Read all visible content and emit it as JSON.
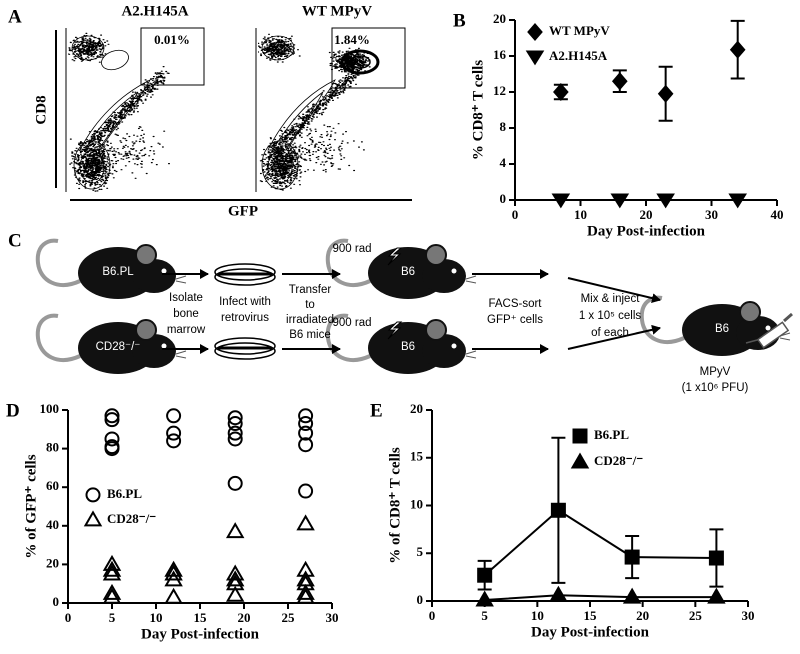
{
  "panel_a": {
    "letter": "A",
    "y_label": "CD8",
    "x_label": "GFP",
    "plots": [
      {
        "title": "A2.H145A",
        "gate": "0.01%"
      },
      {
        "title": "WT MPyV",
        "gate": "1.84%"
      }
    ]
  },
  "panel_c": {
    "letter": "C",
    "donors": [
      "B6.PL",
      "CD28⁻/⁻"
    ],
    "recipient": "B6",
    "isolate": [
      "Isolate",
      "bone",
      "marrow"
    ],
    "infect": [
      "Infect with",
      "retrovirus"
    ],
    "transfer": [
      "Transfer",
      "to",
      "irradiated",
      "B6 mice"
    ],
    "dose": "900 rad",
    "sort": [
      "FACS-sort",
      "GFP⁺ cells"
    ],
    "mix": [
      "Mix & inject",
      "1 x 10⁵ cells",
      "of each"
    ],
    "virus": [
      "MPyV",
      "(1 x10⁶  PFU)"
    ]
  },
  "chart_data": [
    {
      "type": "scatter",
      "panel_label": "B",
      "x_label": "Day Post-infection",
      "y_label": "% CD8⁺ T cells",
      "xlim": [
        0,
        40
      ],
      "xticks": [
        0,
        10,
        20,
        30,
        40
      ],
      "ylim": [
        0,
        20
      ],
      "yticks": [
        0,
        4,
        8,
        12,
        16,
        20
      ],
      "legend": "upper left",
      "series": [
        {
          "name": "WT MPyV",
          "color": "#000000",
          "marker": "diamond",
          "filled": true,
          "x": [
            7,
            16,
            23,
            34
          ],
          "values": [
            12,
            13.2,
            11.8,
            16.7
          ],
          "errors": [
            0.8,
            1.2,
            3,
            3.2
          ]
        },
        {
          "name": "A2.H145A",
          "color": "#000000",
          "marker": "triangle-down",
          "filled": true,
          "x": [
            7,
            16,
            23,
            34
          ],
          "values": [
            0,
            0,
            0,
            0
          ]
        }
      ]
    },
    {
      "type": "scatter",
      "panel_label": "D",
      "x_label": "Day Post-infection",
      "y_label": "% of GFP⁺ cells",
      "xlim": [
        0,
        30
      ],
      "xticks": [
        0,
        5,
        10,
        15,
        20,
        25,
        30
      ],
      "ylim": [
        0,
        100
      ],
      "yticks": [
        0,
        20,
        40,
        60,
        80,
        100
      ],
      "legend": "center left",
      "series": [
        {
          "name": "B6.PL",
          "color": "#000000",
          "marker": "circle",
          "filled": false,
          "x": [
            5,
            5,
            5,
            5,
            5,
            12,
            12,
            12,
            19,
            19,
            19,
            19,
            19,
            27,
            27,
            27,
            27,
            27
          ],
          "values": [
            97,
            95,
            85,
            81,
            80,
            97,
            88,
            84,
            96,
            93,
            88,
            85,
            62,
            97,
            93,
            88,
            82,
            58
          ]
        },
        {
          "name": "CD28⁻/⁻",
          "color": "#000000",
          "marker": "triangle",
          "filled": false,
          "x": [
            5,
            5,
            5,
            5,
            5,
            12,
            12,
            12,
            12,
            19,
            19,
            19,
            19,
            19,
            27,
            27,
            27,
            27,
            27,
            27
          ],
          "values": [
            20,
            17,
            15,
            5,
            3,
            17,
            15,
            12,
            3,
            37,
            15,
            12,
            10,
            4,
            41,
            17,
            12,
            10,
            5,
            3
          ]
        }
      ]
    },
    {
      "type": "line",
      "panel_label": "E",
      "x_label": "Day Post-infection",
      "y_label": "% of CD8⁺ T cells",
      "xlim": [
        0,
        30
      ],
      "xticks": [
        0,
        5,
        10,
        15,
        20,
        25,
        30
      ],
      "ylim": [
        0,
        20
      ],
      "yticks": [
        0,
        5,
        10,
        15,
        20
      ],
      "legend": "upper center",
      "series": [
        {
          "name": "B6.PL",
          "color": "#000000",
          "marker": "square",
          "filled": true,
          "x": [
            5,
            12,
            19,
            27
          ],
          "values": [
            2.7,
            9.5,
            4.6,
            4.5
          ],
          "errors": [
            1.5,
            7.6,
            2.2,
            3
          ]
        },
        {
          "name": "CD28⁻/⁻",
          "color": "#000000",
          "marker": "triangle",
          "filled": true,
          "x": [
            5,
            12,
            19,
            27
          ],
          "values": [
            0.1,
            0.6,
            0.4,
            0.4
          ]
        }
      ]
    }
  ]
}
